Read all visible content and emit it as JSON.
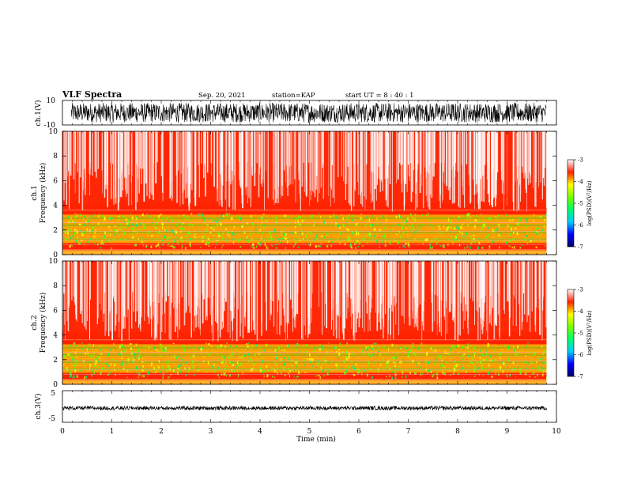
{
  "header": {
    "title": "VLF Spectra",
    "date": "Sep. 20, 2021",
    "station": "station=KAP",
    "start": "start UT =  8 : 40 : 1"
  },
  "colors": {
    "bg": "#ffffff",
    "trace": "#000000",
    "colormap": [
      "#000066",
      "#0000ff",
      "#00ccff",
      "#00ff66",
      "#77ff00",
      "#ffff00",
      "#ff2200",
      "#ffffff"
    ]
  },
  "chart_data": [
    {
      "type": "line",
      "id": "ch1",
      "ylabel": "ch.1(V)",
      "ylim": [
        -10,
        10
      ],
      "yticks": [
        "10",
        "-10"
      ],
      "xlim": [
        0,
        10
      ],
      "amplitude_envelope": 8,
      "description_of_series": "dense noise waveform spanning 0 to 9.8 min"
    },
    {
      "type": "heatmap",
      "id": "ch1_spec",
      "ylabel_line1": "ch.1",
      "ylabel_line2": "Frequency (kHz)",
      "ylim": [
        0,
        10
      ],
      "yticks": [
        "0",
        "2",
        "4",
        "6",
        "8",
        "10"
      ],
      "xlim": [
        0,
        10
      ],
      "data_end_min": 9.8,
      "colorbar": {
        "label": "log(PSD)(V²/Hz)",
        "range": [
          -7,
          -3
        ],
        "ticks": [
          "-3",
          "-4",
          "-5",
          "-6",
          "-7"
        ]
      }
    },
    {
      "type": "heatmap",
      "id": "ch2_spec",
      "ylabel_line1": "ch.2",
      "ylabel_line2": "Frequency (kHz)",
      "ylim": [
        0,
        10
      ],
      "yticks": [
        "0",
        "2",
        "4",
        "6",
        "8",
        "10"
      ],
      "xlim": [
        0,
        10
      ],
      "data_end_min": 9.8,
      "colorbar": {
        "label": "log(PSD)(V²/Hz)",
        "range": [
          -7,
          -3
        ],
        "ticks": [
          "-3",
          "-4",
          "-5",
          "-6",
          "-7"
        ]
      }
    },
    {
      "type": "line",
      "id": "ch3",
      "ylabel": "ch.3(V)",
      "ylim": [
        -5,
        5
      ],
      "yticks": [
        "5",
        "-5"
      ],
      "xlim": [
        0,
        10
      ],
      "level": -0.5,
      "amplitude_envelope": 0.6
    }
  ],
  "xaxis": {
    "label": "Time (min)",
    "ticks": [
      "0",
      "1",
      "2",
      "3",
      "4",
      "5",
      "6",
      "7",
      "8",
      "9",
      "10"
    ]
  }
}
